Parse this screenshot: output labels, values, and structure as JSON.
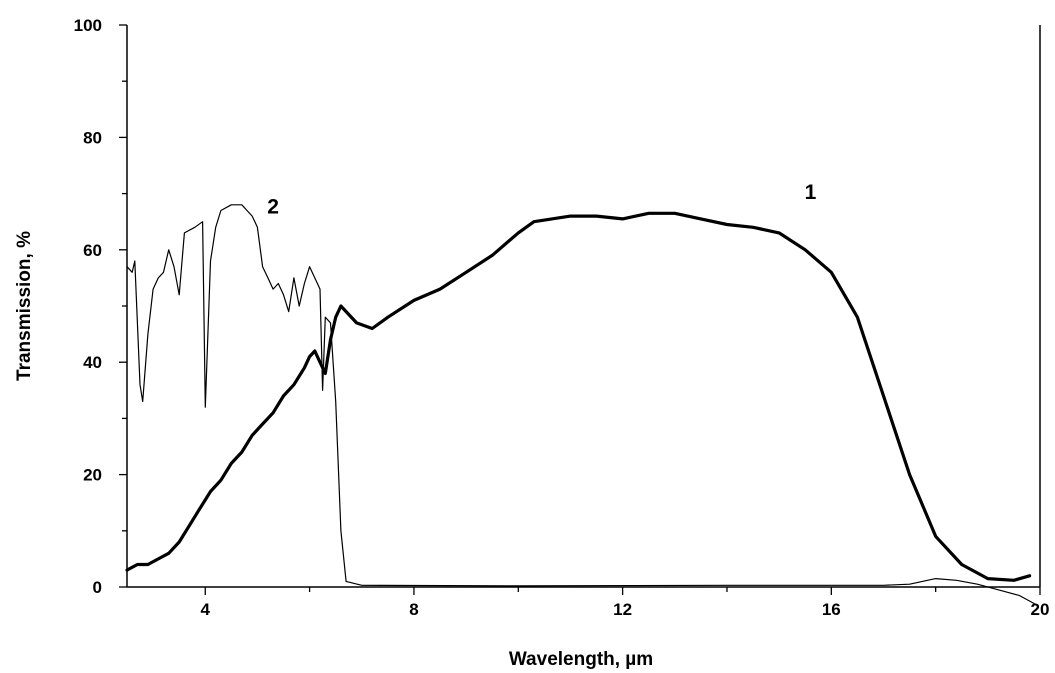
{
  "chart_data": {
    "type": "line",
    "title": "",
    "xlabel": "Wavelength, µm",
    "ylabel": "Transmission, %",
    "xlim": [
      2.5,
      20
    ],
    "ylim": [
      0,
      100
    ],
    "x_ticks": [
      4,
      8,
      12,
      16,
      20
    ],
    "y_ticks": [
      0,
      20,
      40,
      60,
      80,
      100
    ],
    "x_tick_labels": [
      "4",
      "8",
      "12",
      "16",
      "20"
    ],
    "y_tick_labels": [
      "0",
      "20",
      "40",
      "60",
      "80",
      "100"
    ],
    "grid": false,
    "legend": "none",
    "series": [
      {
        "name": "1",
        "color": "#000000",
        "weight": "thick",
        "points": [
          [
            2.5,
            3
          ],
          [
            2.7,
            4
          ],
          [
            2.9,
            4
          ],
          [
            3.1,
            5
          ],
          [
            3.3,
            6
          ],
          [
            3.5,
            8
          ],
          [
            3.7,
            11
          ],
          [
            3.9,
            14
          ],
          [
            4.1,
            17
          ],
          [
            4.3,
            19
          ],
          [
            4.5,
            22
          ],
          [
            4.7,
            24
          ],
          [
            4.9,
            27
          ],
          [
            5.1,
            29
          ],
          [
            5.3,
            31
          ],
          [
            5.5,
            34
          ],
          [
            5.7,
            36
          ],
          [
            5.9,
            39
          ],
          [
            6.0,
            41
          ],
          [
            6.1,
            42
          ],
          [
            6.2,
            40
          ],
          [
            6.3,
            38
          ],
          [
            6.4,
            44
          ],
          [
            6.5,
            48
          ],
          [
            6.6,
            50
          ],
          [
            6.7,
            49
          ],
          [
            6.9,
            47
          ],
          [
            7.2,
            46
          ],
          [
            7.5,
            48
          ],
          [
            8.0,
            51
          ],
          [
            8.5,
            53
          ],
          [
            9.0,
            56
          ],
          [
            9.5,
            59
          ],
          [
            10.0,
            63
          ],
          [
            10.3,
            65
          ],
          [
            11.0,
            66
          ],
          [
            11.5,
            66
          ],
          [
            12.0,
            65.5
          ],
          [
            12.5,
            66.5
          ],
          [
            13.0,
            66.5
          ],
          [
            13.5,
            65.5
          ],
          [
            14.0,
            64.5
          ],
          [
            14.5,
            64
          ],
          [
            15.0,
            63
          ],
          [
            15.5,
            60
          ],
          [
            16.0,
            56
          ],
          [
            16.5,
            48
          ],
          [
            17.0,
            34
          ],
          [
            17.5,
            20
          ],
          [
            18.0,
            9
          ],
          [
            18.5,
            4
          ],
          [
            19.0,
            1.5
          ],
          [
            19.5,
            1.2
          ],
          [
            19.8,
            2
          ]
        ]
      },
      {
        "name": "2",
        "color": "#000000",
        "weight": "thin",
        "points": [
          [
            2.5,
            57
          ],
          [
            2.6,
            56
          ],
          [
            2.65,
            58
          ],
          [
            2.75,
            36
          ],
          [
            2.8,
            33
          ],
          [
            2.9,
            45
          ],
          [
            3.0,
            53
          ],
          [
            3.1,
            55
          ],
          [
            3.2,
            56
          ],
          [
            3.3,
            60
          ],
          [
            3.4,
            57
          ],
          [
            3.5,
            52
          ],
          [
            3.6,
            63
          ],
          [
            3.8,
            64
          ],
          [
            3.95,
            65
          ],
          [
            4.0,
            32
          ],
          [
            4.1,
            58
          ],
          [
            4.2,
            64
          ],
          [
            4.3,
            67
          ],
          [
            4.5,
            68
          ],
          [
            4.7,
            68
          ],
          [
            4.8,
            67
          ],
          [
            4.9,
            66
          ],
          [
            5.0,
            64
          ],
          [
            5.1,
            57
          ],
          [
            5.2,
            55
          ],
          [
            5.3,
            53
          ],
          [
            5.4,
            54
          ],
          [
            5.5,
            52
          ],
          [
            5.6,
            49
          ],
          [
            5.7,
            55
          ],
          [
            5.8,
            50
          ],
          [
            5.9,
            54
          ],
          [
            6.0,
            57
          ],
          [
            6.1,
            55
          ],
          [
            6.2,
            53
          ],
          [
            6.25,
            35
          ],
          [
            6.3,
            48
          ],
          [
            6.4,
            47
          ],
          [
            6.5,
            33
          ],
          [
            6.6,
            10
          ],
          [
            6.7,
            1
          ],
          [
            7.0,
            0.3
          ],
          [
            10.0,
            0.2
          ],
          [
            14.0,
            0.3
          ],
          [
            17.0,
            0.3
          ],
          [
            17.5,
            0.5
          ],
          [
            18.0,
            1.5
          ],
          [
            18.4,
            1.2
          ],
          [
            18.8,
            0.5
          ],
          [
            19.2,
            -0.5
          ],
          [
            19.6,
            -1.5
          ],
          [
            19.9,
            -3
          ]
        ]
      }
    ],
    "annotations": [
      {
        "text": "1",
        "x": 15.6,
        "y": 69
      },
      {
        "text": "2",
        "x": 5.3,
        "y": 66.5
      }
    ]
  }
}
